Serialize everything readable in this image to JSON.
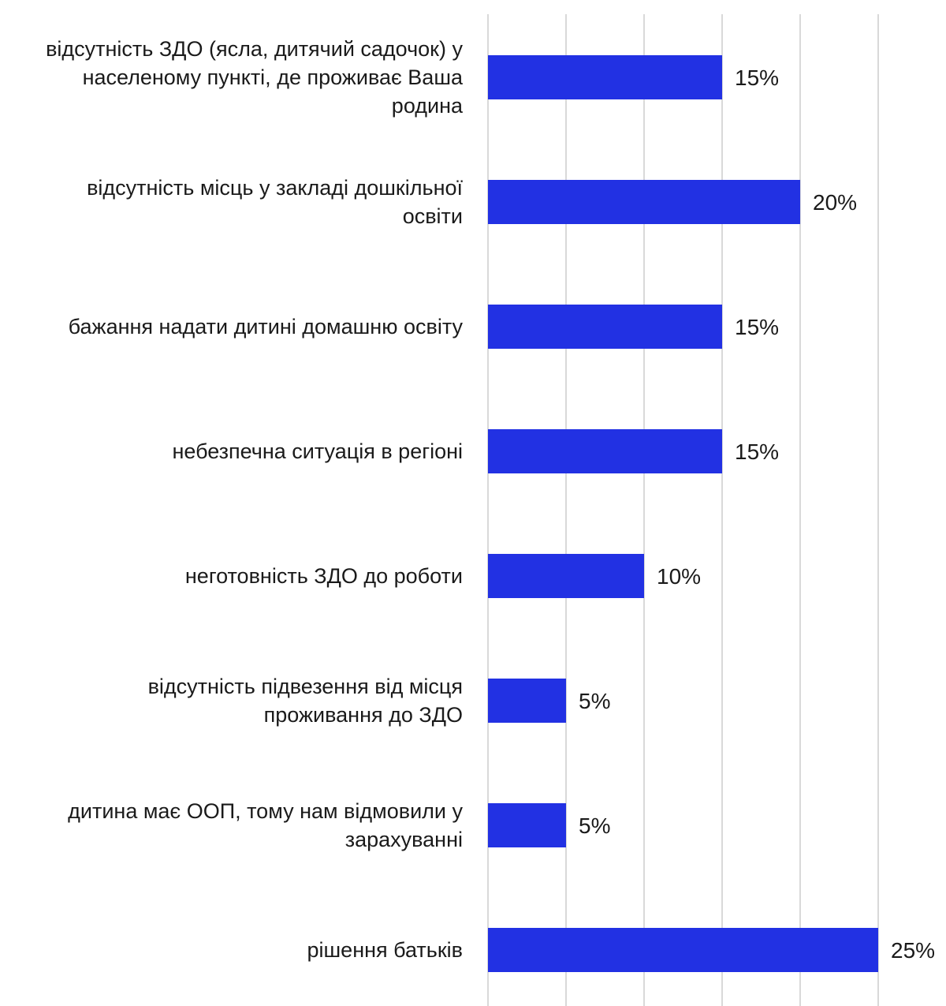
{
  "chart_data": {
    "type": "bar",
    "orientation": "horizontal",
    "categories": [
      "відсутність ЗДО (ясла, дитячий садочок) у населеному пункті, де проживає Ваша родина",
      "відсутність місць у закладі дошкільної освіти",
      "бажання надати дитині домашню освіту",
      "небезпечна ситуація в регіоні",
      "неготовність ЗДО до роботи",
      "відсутність підвезення від місця проживання до ЗДО",
      "дитина має ООП, тому нам відмовили у зарахуванні",
      "рішення батьків"
    ],
    "category_lines": [
      [
        "відсутність ЗДО (ясла, дитячий садочок) у",
        "населеному пункті, де проживає Ваша",
        "родина"
      ],
      [
        "відсутність місць у закладі дошкільної",
        "освіти"
      ],
      [
        "бажання надати дитині домашню освіту"
      ],
      [
        "небезпечна ситуація в регіоні"
      ],
      [
        "неготовність ЗДО до роботи"
      ],
      [
        "відсутність підвезення від місця",
        "проживання до ЗДО"
      ],
      [
        "дитина має ООП, тому нам відмовили у",
        "зарахуванні"
      ],
      [
        "рішення батьків"
      ]
    ],
    "values": [
      15,
      20,
      15,
      15,
      10,
      5,
      5,
      25
    ],
    "value_labels": [
      "15%",
      "20%",
      "15%",
      "15%",
      "10%",
      "5%",
      "5%",
      "25%"
    ],
    "xlim": [
      0,
      25
    ],
    "grid_step": 5,
    "grid": true,
    "title": "",
    "xlabel": "",
    "ylabel": "",
    "colors": {
      "bar": "#2231e3",
      "grid": "#d9d9d9",
      "text": "#1a1a1a"
    }
  }
}
